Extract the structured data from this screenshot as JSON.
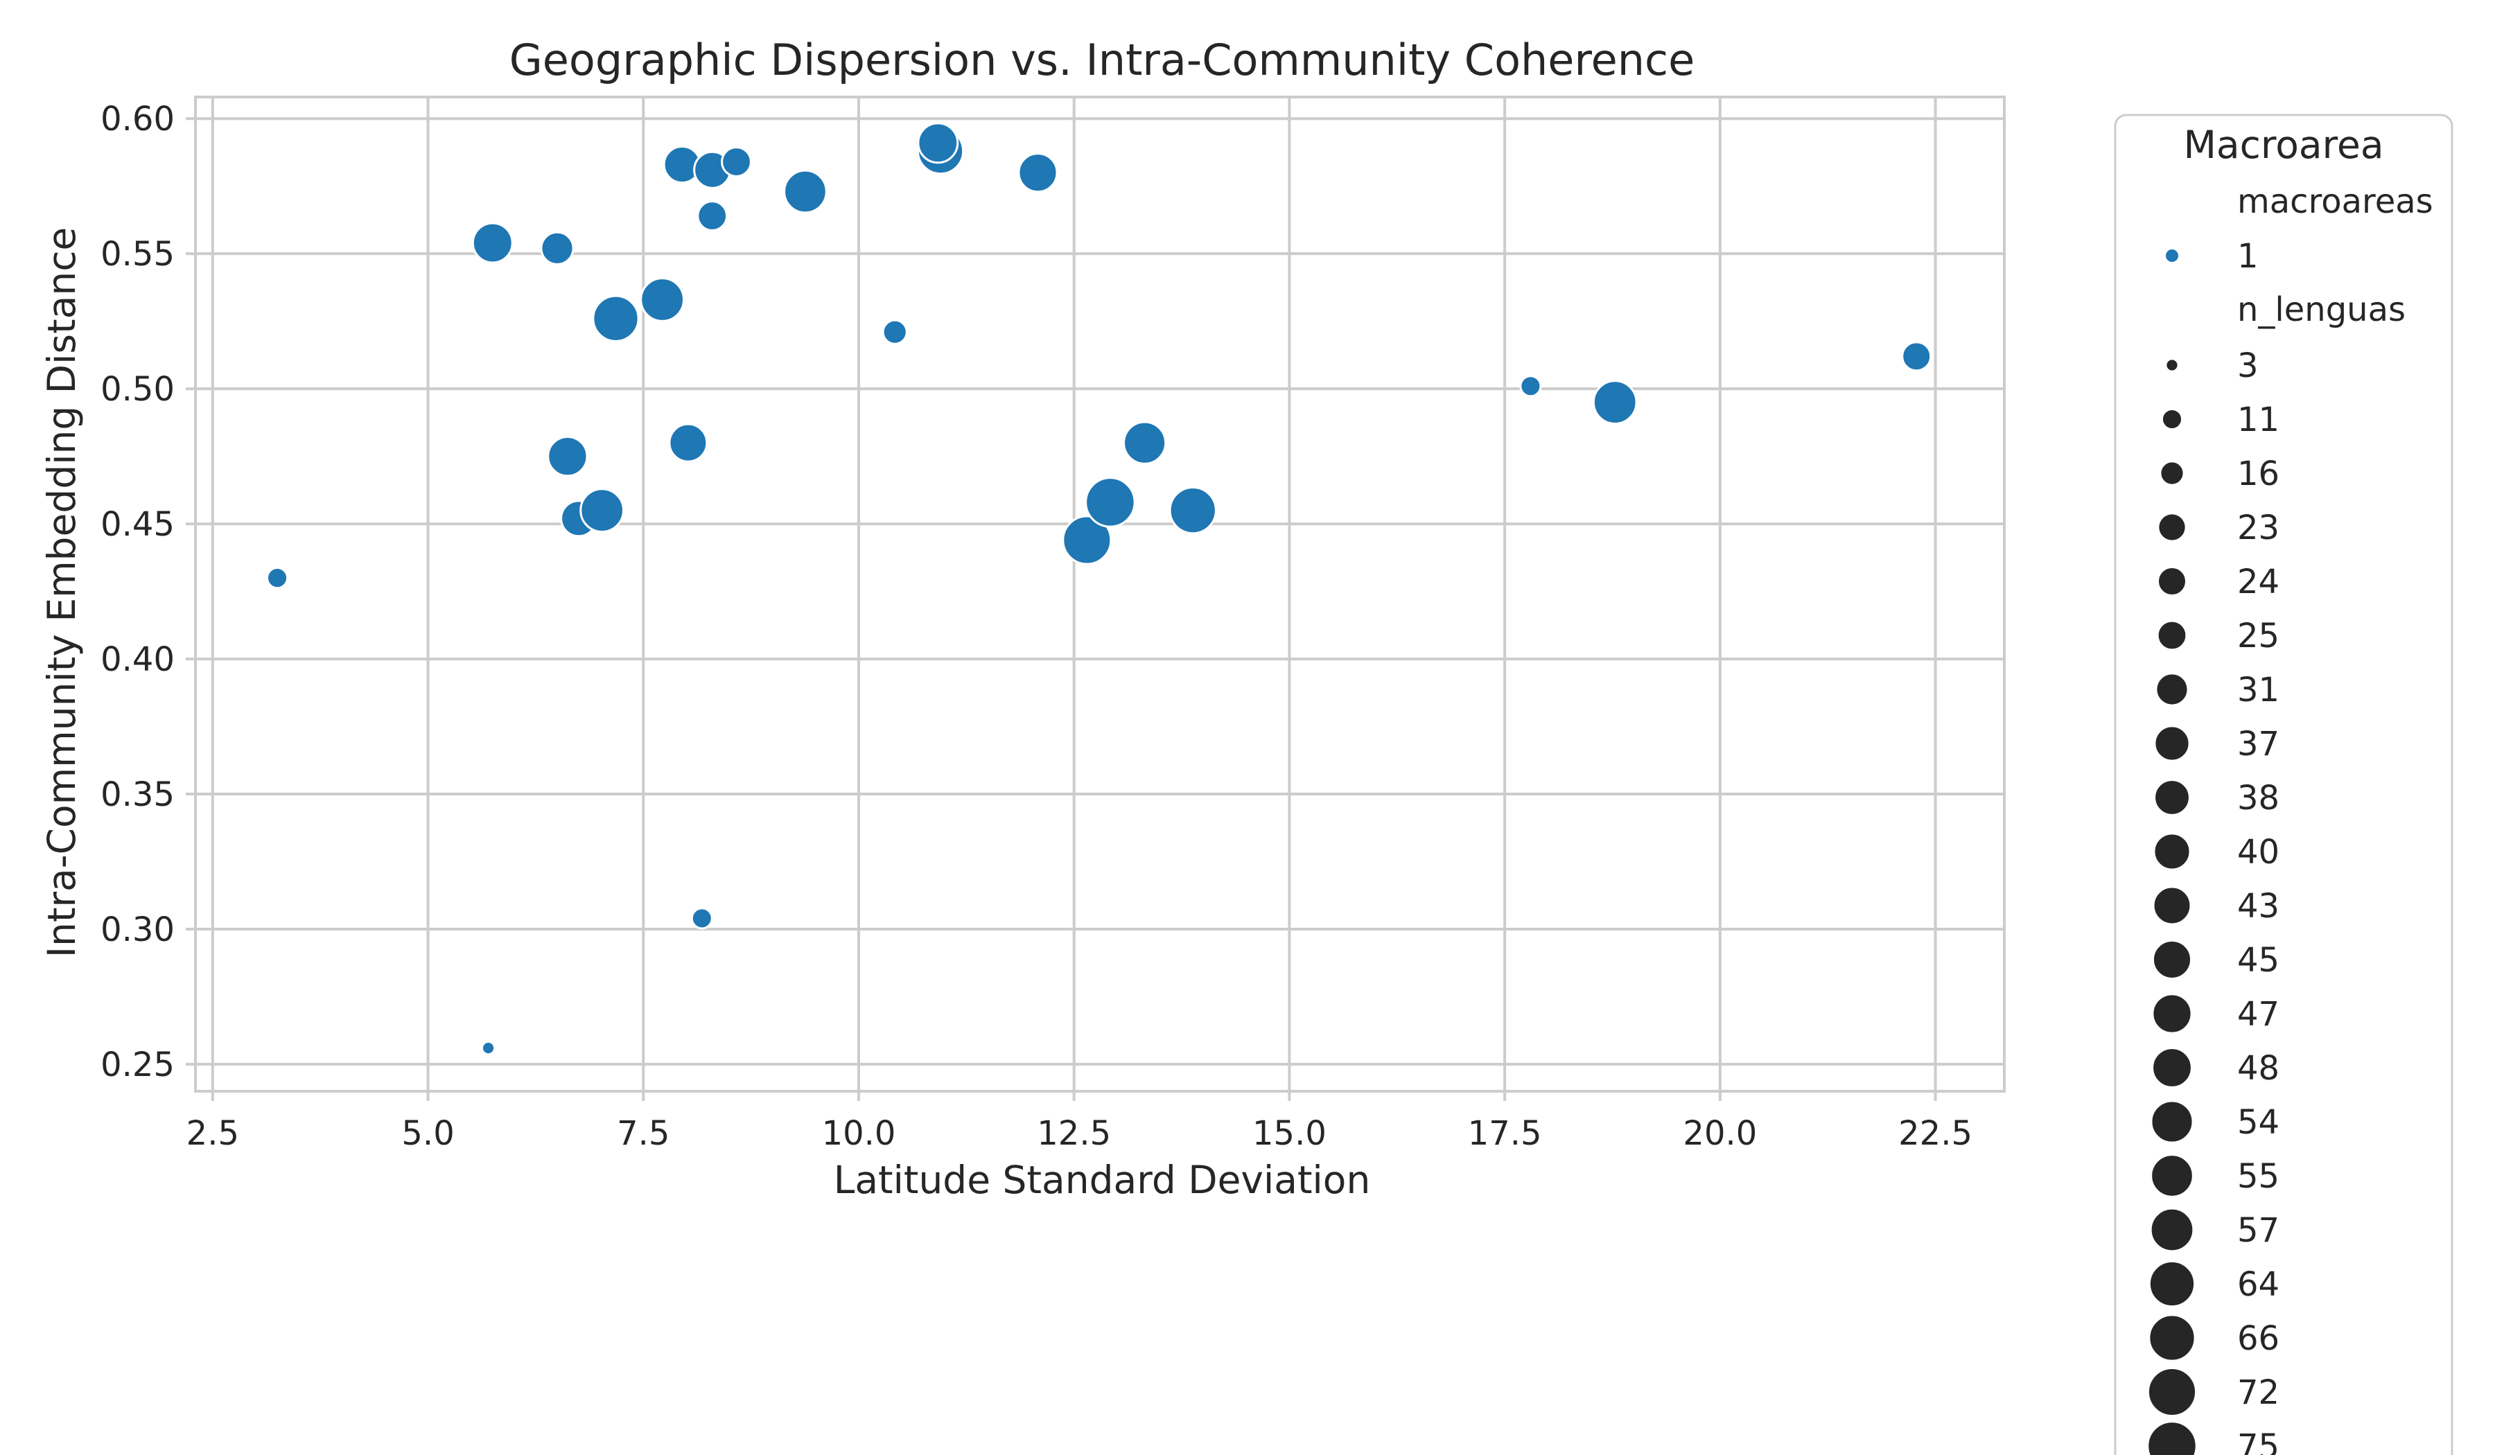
{
  "chart_data": {
    "type": "scatter",
    "title": "Geographic Dispersion vs. Intra-Community Coherence",
    "xlabel": "Latitude Standard Deviation",
    "ylabel": "Intra-Community Embedding Distance",
    "xlim": [
      2.3,
      23.3
    ],
    "ylim": [
      0.24,
      0.608
    ],
    "x_ticks": [
      2.5,
      5.0,
      7.5,
      10.0,
      12.5,
      15.0,
      17.5,
      20.0,
      22.5
    ],
    "x_tick_labels": [
      "2.5",
      "5.0",
      "7.5",
      "10.0",
      "12.5",
      "15.0",
      "17.5",
      "20.0",
      "22.5"
    ],
    "y_ticks": [
      0.25,
      0.3,
      0.35,
      0.4,
      0.45,
      0.5,
      0.55,
      0.6
    ],
    "y_tick_labels": [
      "0.25",
      "0.30",
      "0.35",
      "0.40",
      "0.45",
      "0.50",
      "0.55",
      "0.60"
    ],
    "grid": true,
    "legend_position": "outside-right",
    "color": "#1f77b4",
    "legend_marker_color": "#262626",
    "legend": {
      "title": "Macroarea",
      "hue_header": "macroareas",
      "hue_entries": [
        "1"
      ],
      "size_header": "n_lenguas",
      "size_entries": [
        3,
        11,
        16,
        23,
        24,
        25,
        31,
        37,
        38,
        40,
        43,
        45,
        47,
        48,
        54,
        55,
        57,
        64,
        66,
        72,
        75
      ]
    },
    "points": [
      {
        "x": 3.25,
        "y": 0.43,
        "n": 11
      },
      {
        "x": 5.7,
        "y": 0.256,
        "n": 3
      },
      {
        "x": 5.75,
        "y": 0.554,
        "n": 48
      },
      {
        "x": 6.5,
        "y": 0.552,
        "n": 31
      },
      {
        "x": 6.62,
        "y": 0.475,
        "n": 47
      },
      {
        "x": 6.75,
        "y": 0.452,
        "n": 38
      },
      {
        "x": 7.02,
        "y": 0.455,
        "n": 57
      },
      {
        "x": 7.18,
        "y": 0.526,
        "n": 64
      },
      {
        "x": 7.72,
        "y": 0.533,
        "n": 57
      },
      {
        "x": 7.95,
        "y": 0.583,
        "n": 40
      },
      {
        "x": 8.02,
        "y": 0.48,
        "n": 43
      },
      {
        "x": 8.18,
        "y": 0.304,
        "n": 11
      },
      {
        "x": 8.3,
        "y": 0.581,
        "n": 40
      },
      {
        "x": 8.3,
        "y": 0.564,
        "n": 25
      },
      {
        "x": 8.58,
        "y": 0.584,
        "n": 25
      },
      {
        "x": 9.38,
        "y": 0.573,
        "n": 55
      },
      {
        "x": 10.42,
        "y": 0.521,
        "n": 16
      },
      {
        "x": 10.95,
        "y": 0.588,
        "n": 64
      },
      {
        "x": 10.92,
        "y": 0.591,
        "n": 48
      },
      {
        "x": 12.08,
        "y": 0.58,
        "n": 45
      },
      {
        "x": 12.65,
        "y": 0.444,
        "n": 72
      },
      {
        "x": 12.92,
        "y": 0.458,
        "n": 75
      },
      {
        "x": 13.32,
        "y": 0.48,
        "n": 54
      },
      {
        "x": 13.88,
        "y": 0.455,
        "n": 66
      },
      {
        "x": 17.8,
        "y": 0.501,
        "n": 11
      },
      {
        "x": 18.78,
        "y": 0.495,
        "n": 57
      },
      {
        "x": 22.28,
        "y": 0.512,
        "n": 24
      }
    ]
  }
}
